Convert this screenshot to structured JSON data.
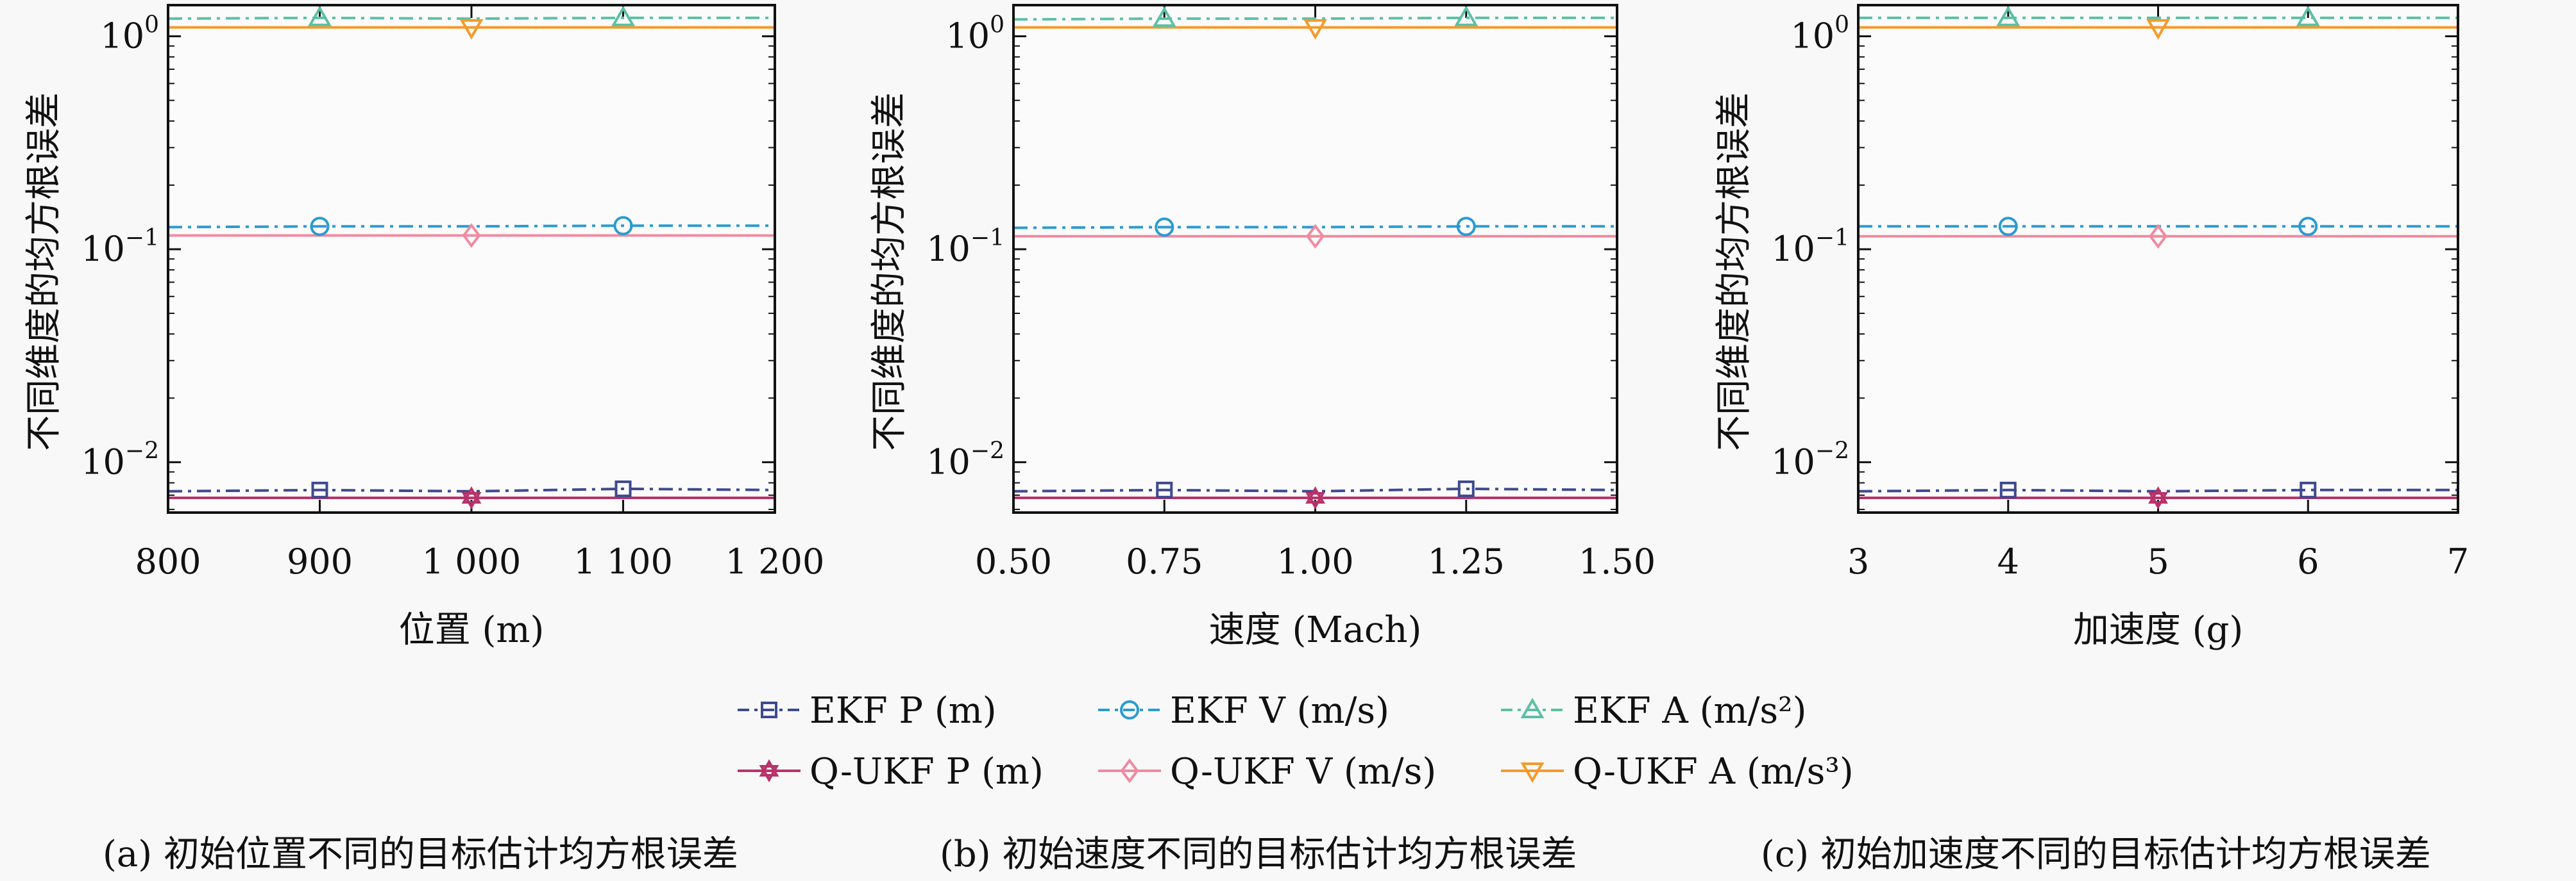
{
  "figure": {
    "ylabel": "不同维度的均方根误差",
    "y_ticks": [
      {
        "value": 1,
        "base": "10",
        "exp": "0"
      },
      {
        "value": 0.1,
        "base": "10",
        "exp": "−1"
      },
      {
        "value": 0.01,
        "base": "10",
        "exp": "−2"
      }
    ]
  },
  "legend": {
    "items": [
      {
        "label": "EKF P (m)",
        "color": "#3d4a8f",
        "marker": "square-icon",
        "dash": "dashdot"
      },
      {
        "label": "EKF V (m/s)",
        "color": "#2b9bd1",
        "marker": "circle-icon",
        "dash": "dashdot"
      },
      {
        "label": "EKF A (m/s²)",
        "color": "#5cc0a5",
        "marker": "triangle-up-icon",
        "dash": "dashdot"
      },
      {
        "label": "Q-UKF P (m)",
        "color": "#b8326a",
        "marker": "star-icon",
        "dash": "solid"
      },
      {
        "label": "Q-UKF V (m/s)",
        "color": "#f08aa0",
        "marker": "diamond-icon",
        "dash": "solid"
      },
      {
        "label": "Q-UKF A (m/s³)",
        "color": "#f59a2a",
        "marker": "triangle-down-icon",
        "dash": "solid"
      }
    ]
  },
  "chart_data": [
    {
      "type": "line",
      "caption": "(a) 初始位置不同的目标估计均方根误差",
      "xlabel": "位置 (m)",
      "ylabel": "不同维度的均方根误差",
      "y_scale": "log",
      "ylim": [
        0.0058,
        1.4
      ],
      "xlim": [
        800,
        1200
      ],
      "x": [
        800,
        900,
        1000,
        1100,
        1200
      ],
      "x_tick_labels": [
        "800",
        "900",
        "1 000",
        "1 100",
        "1 200"
      ],
      "marker_x": [
        900,
        1000,
        1100
      ],
      "series": [
        {
          "name": "EKF P (m)",
          "values": [
            0.0073,
            0.0074,
            0.0073,
            0.0075,
            0.0074
          ],
          "marker_at": [
            900,
            1100
          ]
        },
        {
          "name": "EKF V (m/s)",
          "values": [
            0.127,
            0.128,
            0.128,
            0.129,
            0.129
          ],
          "marker_at": [
            900,
            1100
          ]
        },
        {
          "name": "EKF A (m/s²)",
          "values": [
            1.21,
            1.22,
            1.21,
            1.22,
            1.22
          ],
          "marker_at": [
            900,
            1100
          ]
        },
        {
          "name": "Q-UKF P (m)",
          "values": [
            0.0068,
            0.0068,
            0.0068,
            0.0068,
            0.0068
          ],
          "marker_at": [
            1000
          ]
        },
        {
          "name": "Q-UKF V (m/s)",
          "values": [
            0.116,
            0.116,
            0.116,
            0.116,
            0.116
          ],
          "marker_at": [
            1000
          ]
        },
        {
          "name": "Q-UKF A (m/s³)",
          "values": [
            1.1,
            1.1,
            1.1,
            1.1,
            1.1
          ],
          "marker_at": [
            1000
          ]
        }
      ]
    },
    {
      "type": "line",
      "caption": "(b) 初始速度不同的目标估计均方根误差",
      "xlabel": "速度 (Mach)",
      "ylabel": "不同维度的均方根误差",
      "y_scale": "log",
      "ylim": [
        0.0058,
        1.4
      ],
      "xlim": [
        0.5,
        1.5
      ],
      "x": [
        0.5,
        0.75,
        1.0,
        1.25,
        1.5
      ],
      "x_tick_labels": [
        "0.50",
        "0.75",
        "1.00",
        "1.25",
        "1.50"
      ],
      "series": [
        {
          "name": "EKF P (m)",
          "values": [
            0.0073,
            0.0074,
            0.0073,
            0.0075,
            0.0074
          ],
          "marker_at": [
            0.75,
            1.25
          ]
        },
        {
          "name": "EKF V (m/s)",
          "values": [
            0.126,
            0.127,
            0.127,
            0.128,
            0.128
          ],
          "marker_at": [
            0.75,
            1.25
          ]
        },
        {
          "name": "EKF A (m/s²)",
          "values": [
            1.2,
            1.21,
            1.21,
            1.22,
            1.22
          ],
          "marker_at": [
            0.75,
            1.25
          ]
        },
        {
          "name": "Q-UKF P (m)",
          "values": [
            0.0068,
            0.0068,
            0.0068,
            0.0068,
            0.0068
          ],
          "marker_at": [
            1.0
          ]
        },
        {
          "name": "Q-UKF V (m/s)",
          "values": [
            0.115,
            0.115,
            0.115,
            0.115,
            0.115
          ],
          "marker_at": [
            1.0
          ]
        },
        {
          "name": "Q-UKF A (m/s³)",
          "values": [
            1.1,
            1.1,
            1.1,
            1.1,
            1.1
          ],
          "marker_at": [
            1.0
          ]
        }
      ]
    },
    {
      "type": "line",
      "caption": "(c) 初始加速度不同的目标估计均方根误差",
      "xlabel": "加速度 (g)",
      "ylabel": "不同维度的均方根误差",
      "y_scale": "log",
      "ylim": [
        0.0058,
        1.4
      ],
      "xlim": [
        3,
        7
      ],
      "x": [
        3,
        4,
        5,
        6,
        7
      ],
      "x_tick_labels": [
        "3",
        "4",
        "5",
        "6",
        "7"
      ],
      "series": [
        {
          "name": "EKF P (m)",
          "values": [
            0.0073,
            0.0074,
            0.0073,
            0.0074,
            0.0074
          ],
          "marker_at": [
            4,
            6
          ]
        },
        {
          "name": "EKF V (m/s)",
          "values": [
            0.128,
            0.128,
            0.128,
            0.128,
            0.128
          ],
          "marker_at": [
            4,
            6
          ]
        },
        {
          "name": "EKF A (m/s²)",
          "values": [
            1.22,
            1.22,
            1.22,
            1.22,
            1.22
          ],
          "marker_at": [
            4,
            6
          ]
        },
        {
          "name": "Q-UKF P (m)",
          "values": [
            0.0068,
            0.0068,
            0.0068,
            0.0068,
            0.0068
          ],
          "marker_at": [
            5
          ]
        },
        {
          "name": "Q-UKF V (m/s)",
          "values": [
            0.115,
            0.115,
            0.115,
            0.115,
            0.115
          ],
          "marker_at": [
            5
          ]
        },
        {
          "name": "Q-UKF A (m/s³)",
          "values": [
            1.1,
            1.1,
            1.1,
            1.1,
            1.1
          ],
          "marker_at": [
            5
          ]
        }
      ]
    }
  ]
}
